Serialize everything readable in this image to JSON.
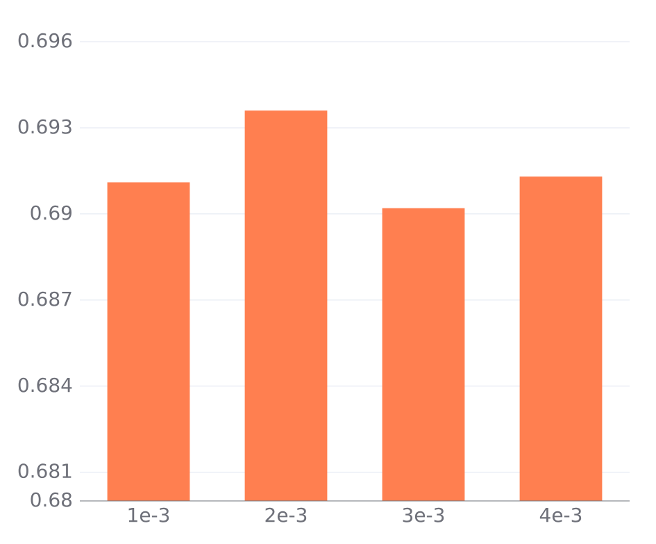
{
  "chart_data": {
    "type": "bar",
    "categories": [
      "1e-3",
      "2e-3",
      "3e-3",
      "4e-3"
    ],
    "values": [
      0.6911,
      0.6936,
      0.6902,
      0.6913
    ],
    "color": "#ff7f50",
    "ylim": [
      0.68,
      0.696
    ],
    "yticks": [
      0.68,
      0.681,
      0.684,
      0.687,
      0.69,
      0.693,
      0.696
    ],
    "grid": true
  }
}
